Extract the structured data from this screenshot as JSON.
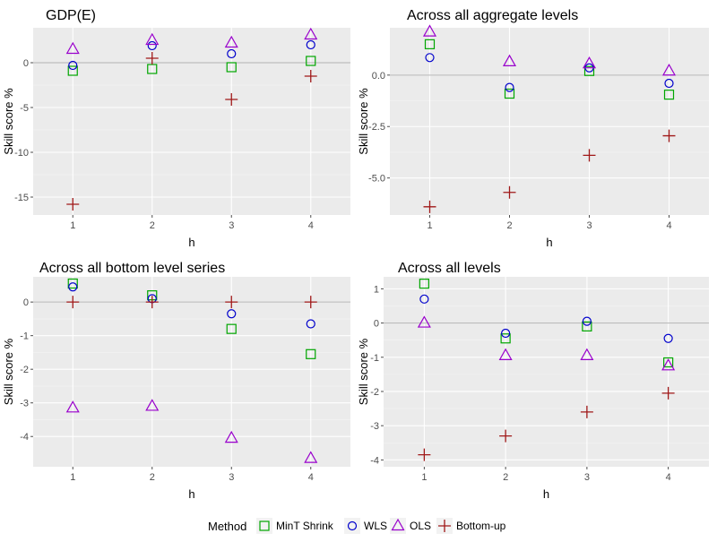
{
  "legend": {
    "title": "Method",
    "items": [
      {
        "name": "MinT Shrink",
        "marker": "square",
        "color": "#00a600"
      },
      {
        "name": "WLS",
        "marker": "circle",
        "color": "#0000cc"
      },
      {
        "name": "OLS",
        "marker": "triangle",
        "color": "#9900cc"
      },
      {
        "name": "Bottom-up",
        "marker": "plus",
        "color": "#a01818"
      }
    ]
  },
  "chart_data": [
    {
      "type": "scatter",
      "title": "GDP(E)",
      "xlabel": "h",
      "ylabel": "Skill score %",
      "x": [
        1,
        2,
        3,
        4
      ],
      "xlim": [
        0.5,
        4.5
      ],
      "ylim": [
        -17.0,
        3.9
      ],
      "yticks": [
        0,
        -5,
        -10,
        -15
      ],
      "ytick_labels": [
        "0",
        "-5",
        "-10",
        "-15"
      ],
      "reference_line": 0,
      "grid": true,
      "series": [
        {
          "name": "MinT Shrink",
          "values": [
            -0.9,
            -0.7,
            -0.5,
            0.2
          ]
        },
        {
          "name": "WLS",
          "values": [
            -0.3,
            1.9,
            1.0,
            2.0
          ]
        },
        {
          "name": "OLS",
          "values": [
            1.5,
            2.5,
            2.2,
            3.1
          ]
        },
        {
          "name": "Bottom-up",
          "values": [
            -15.8,
            0.5,
            -4.1,
            -1.5
          ]
        }
      ]
    },
    {
      "type": "scatter",
      "title": "Across all aggregate levels",
      "xlabel": "h",
      "ylabel": "Skill score %",
      "x": [
        1,
        2,
        3,
        4
      ],
      "xlim": [
        0.5,
        4.5
      ],
      "ylim": [
        -6.8,
        2.3
      ],
      "yticks": [
        0,
        -2.5,
        -5
      ],
      "ytick_labels": [
        "0.0",
        "-2.5",
        "-5.0"
      ],
      "reference_line": 0,
      "grid": true,
      "series": [
        {
          "name": "MinT Shrink",
          "values": [
            1.5,
            -0.9,
            0.2,
            -0.95
          ]
        },
        {
          "name": "WLS",
          "values": [
            0.85,
            -0.6,
            0.35,
            -0.4
          ]
        },
        {
          "name": "OLS",
          "values": [
            2.1,
            0.65,
            0.55,
            0.2
          ]
        },
        {
          "name": "Bottom-up",
          "values": [
            -6.4,
            -5.7,
            -3.9,
            -2.95
          ]
        }
      ]
    },
    {
      "type": "scatter",
      "title": "Across all bottom level series",
      "xlabel": "h",
      "ylabel": "Skill score %",
      "x": [
        1,
        2,
        3,
        4
      ],
      "xlim": [
        0.5,
        4.5
      ],
      "ylim": [
        -4.9,
        0.75
      ],
      "yticks": [
        0,
        -1,
        -2,
        -3,
        -4
      ],
      "ytick_labels": [
        "0",
        "-1",
        "-2",
        "-3",
        "-4"
      ],
      "reference_line": 0,
      "grid": true,
      "series": [
        {
          "name": "MinT Shrink",
          "values": [
            0.55,
            0.2,
            -0.8,
            -1.55
          ]
        },
        {
          "name": "WLS",
          "values": [
            0.45,
            0.1,
            -0.35,
            -0.65
          ]
        },
        {
          "name": "OLS",
          "values": [
            -3.15,
            -3.1,
            -4.05,
            -4.65
          ]
        },
        {
          "name": "Bottom-up",
          "values": [
            0.0,
            0.0,
            0.0,
            0.0
          ]
        }
      ]
    },
    {
      "type": "scatter",
      "title": "Across all levels",
      "xlabel": "h",
      "ylabel": "Skill score %",
      "x": [
        1,
        2,
        3,
        4
      ],
      "xlim": [
        0.5,
        4.5
      ],
      "ylim": [
        -4.2,
        1.35
      ],
      "yticks": [
        1,
        0,
        -1,
        -2,
        -3,
        -4
      ],
      "ytick_labels": [
        "1",
        "0",
        "-1",
        "-2",
        "-3",
        "-4"
      ],
      "reference_line": 0,
      "grid": true,
      "series": [
        {
          "name": "MinT Shrink",
          "values": [
            1.15,
            -0.45,
            -0.1,
            -1.15
          ]
        },
        {
          "name": "WLS",
          "values": [
            0.7,
            -0.3,
            0.05,
            -0.45
          ]
        },
        {
          "name": "OLS",
          "values": [
            0.0,
            -0.95,
            -0.95,
            -1.25
          ]
        },
        {
          "name": "Bottom-up",
          "values": [
            -3.85,
            -3.3,
            -2.6,
            -2.05
          ]
        }
      ]
    }
  ]
}
